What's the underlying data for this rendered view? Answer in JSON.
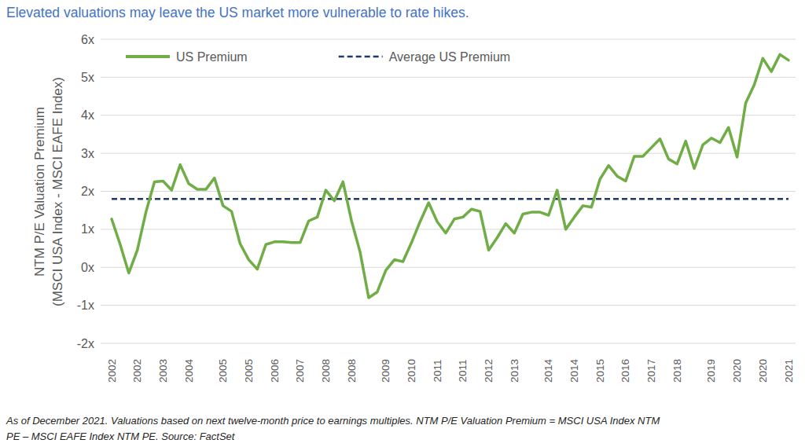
{
  "chart_data": {
    "type": "line",
    "title": "Elevated valuations may leave the US market more vulnerable to rate hikes.",
    "y_label": [
      "NTM P/E Valuation Premium",
      "(MSCI USA Index - MSCI EAFE Index)"
    ],
    "note": [
      "As of December 2021. Valuations based on next twelve-month price to earnings multiples. NTM P/E Valuation Premium = MSCI USA Index NTM",
      "PE – MSCI EAFE Index NTM PE. Source: FactSet"
    ],
    "categories": [
      "2002",
      null,
      null,
      "2002",
      null,
      null,
      "2003",
      null,
      null,
      "2004",
      null,
      null,
      null,
      "2005",
      null,
      null,
      "2005",
      null,
      null,
      "2006",
      null,
      null,
      "2007",
      null,
      null,
      "2008",
      null,
      null,
      "2008",
      null,
      null,
      null,
      "2009",
      null,
      null,
      "2010",
      null,
      null,
      "2011",
      null,
      null,
      "2011",
      null,
      null,
      "2012",
      null,
      null,
      "2013",
      null,
      null,
      null,
      "2014",
      null,
      null,
      "2014",
      null,
      null,
      "2015",
      null,
      null,
      "2016",
      null,
      null,
      "2017",
      null,
      null,
      "2018",
      null,
      null,
      null,
      "2019",
      null,
      null,
      "2020",
      null,
      null,
      "2020",
      null,
      null,
      "2021"
    ],
    "series": [
      {
        "name": "US Premium",
        "color": "#70ad47",
        "line_style": "solid",
        "values": [
          1.27,
          0.6,
          -0.15,
          0.45,
          1.45,
          2.25,
          2.27,
          2.03,
          2.7,
          2.2,
          2.05,
          2.05,
          2.35,
          1.62,
          1.47,
          0.62,
          0.2,
          -0.05,
          0.6,
          0.67,
          0.67,
          0.65,
          0.65,
          1.22,
          1.32,
          2.03,
          1.75,
          2.25,
          1.22,
          0.4,
          -0.8,
          -0.65,
          -0.08,
          0.2,
          0.15,
          0.65,
          1.2,
          1.7,
          1.2,
          0.9,
          1.27,
          1.32,
          1.53,
          1.47,
          0.45,
          0.78,
          1.15,
          0.9,
          1.4,
          1.45,
          1.45,
          1.37,
          2.03,
          1.0,
          1.32,
          1.62,
          1.58,
          2.32,
          2.68,
          2.4,
          2.27,
          2.92,
          2.92,
          3.15,
          3.38,
          2.85,
          2.72,
          3.32,
          2.6,
          3.22,
          3.4,
          3.28,
          3.68,
          2.9,
          4.32,
          4.8,
          5.5,
          5.15,
          5.6,
          5.45
        ]
      },
      {
        "name": "Average US Premium",
        "color": "#203864",
        "line_style": "dashed",
        "values": [
          1.8,
          1.8,
          1.8,
          1.8,
          1.8,
          1.8,
          1.8,
          1.8,
          1.8,
          1.8,
          1.8,
          1.8,
          1.8,
          1.8,
          1.8,
          1.8,
          1.8,
          1.8,
          1.8,
          1.8,
          1.8,
          1.8,
          1.8,
          1.8,
          1.8,
          1.8,
          1.8,
          1.8,
          1.8,
          1.8,
          1.8,
          1.8,
          1.8,
          1.8,
          1.8,
          1.8,
          1.8,
          1.8,
          1.8,
          1.8,
          1.8,
          1.8,
          1.8,
          1.8,
          1.8,
          1.8,
          1.8,
          1.8,
          1.8,
          1.8,
          1.8,
          1.8,
          1.8,
          1.8,
          1.8,
          1.8,
          1.8,
          1.8,
          1.8,
          1.8,
          1.8,
          1.8,
          1.8,
          1.8,
          1.8,
          1.8,
          1.8,
          1.8,
          1.8,
          1.8,
          1.8,
          1.8,
          1.8,
          1.8,
          1.8,
          1.8,
          1.8,
          1.8,
          1.8,
          1.8
        ]
      }
    ],
    "ylim": [
      -2,
      6
    ],
    "yticks": [
      {
        "value": -2,
        "label": "-2x"
      },
      {
        "value": -1,
        "label": "-1x"
      },
      {
        "value": 0,
        "label": "0x"
      },
      {
        "value": 1,
        "label": "1x"
      },
      {
        "value": 2,
        "label": "2x"
      },
      {
        "value": 3,
        "label": "3x"
      },
      {
        "value": 4,
        "label": "4x"
      },
      {
        "value": 5,
        "label": "5x"
      },
      {
        "value": 6,
        "label": "6x"
      }
    ],
    "grid": true,
    "legend": "upper-left"
  }
}
